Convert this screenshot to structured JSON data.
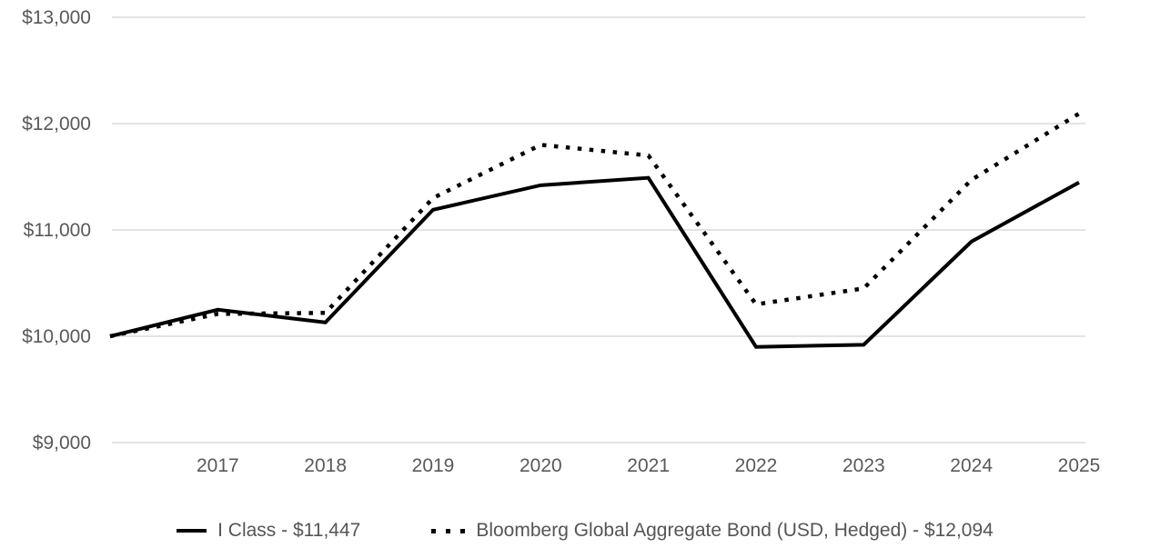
{
  "chart_data": {
    "type": "line",
    "title": "",
    "xlabel": "",
    "ylabel": "",
    "ylim": [
      9000,
      13000
    ],
    "y_ticks": [
      9000,
      10000,
      11000,
      12000,
      13000
    ],
    "y_tick_labels": [
      "$9,000",
      "$10,000",
      "$11,000",
      "$12,000",
      "$13,000"
    ],
    "x_tick_labels": [
      "2017",
      "2018",
      "2019",
      "2020",
      "2021",
      "2022",
      "2023",
      "2024",
      "2025"
    ],
    "first_point_unlabeled": true,
    "grid": "horizontal",
    "legend_position": "bottom",
    "series": [
      {
        "name": "I Class - $11,447",
        "style": "solid",
        "color": "#000000",
        "values": [
          10000,
          10250,
          10130,
          11190,
          11420,
          11490,
          9900,
          9920,
          10890,
          11447
        ]
      },
      {
        "name": "Bloomberg Global Aggregate Bond (USD, Hedged) - $12,094",
        "style": "dotted",
        "color": "#000000",
        "values": [
          10000,
          10210,
          10220,
          11300,
          11800,
          11700,
          10300,
          10450,
          11470,
          12094
        ]
      }
    ]
  },
  "legend": {
    "items": [
      {
        "label": "I Class - $11,447",
        "marker": "solid-line"
      },
      {
        "label": "Bloomberg Global Aggregate Bond (USD, Hedged) - $12,094",
        "marker": "dotted-line"
      }
    ]
  },
  "colors": {
    "line": "#000000",
    "gridline": "#e3e3e3",
    "axis_text": "#595959",
    "legend_text": "#555555",
    "background": "#ffffff"
  }
}
